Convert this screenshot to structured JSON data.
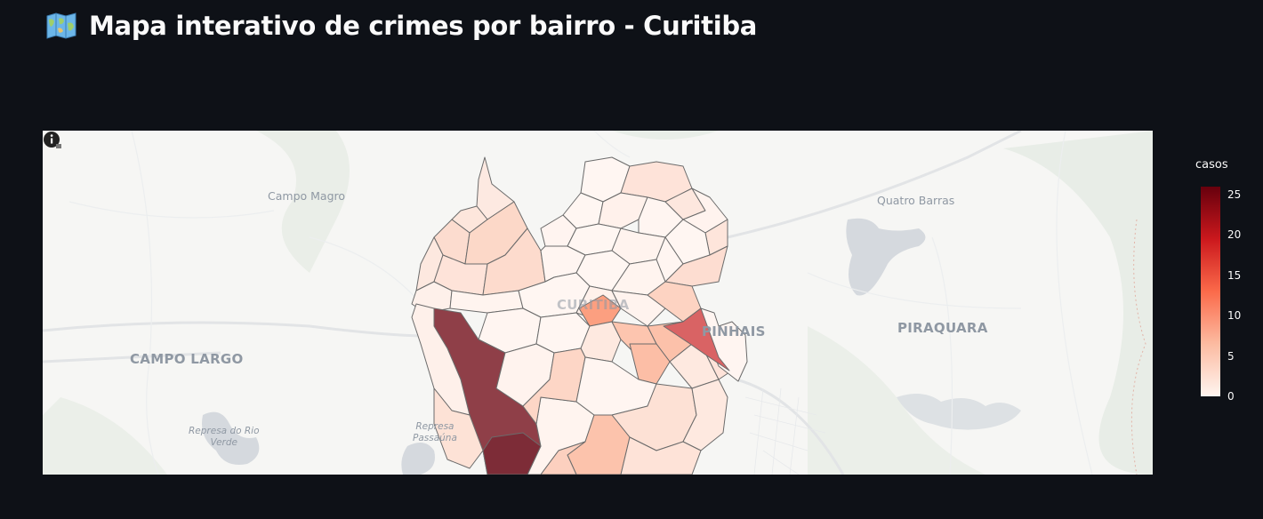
{
  "header": {
    "title": "Mapa interativo de crimes por bairro - Curitiba",
    "icon": "world-map-icon"
  },
  "map": {
    "labels": {
      "campo_magro": "Campo Magro",
      "quatro_barras": "Quatro Barras",
      "curitiba": "CURITIBA",
      "pinhais": "PINHAIS",
      "piraquara": "PIRAQUARA",
      "campo_largo": "CAMPO LARGO",
      "represa_rio_verde_1": "Represa do Rio",
      "represa_rio_verde_2": "Verde",
      "represa_passauna_1": "Represa",
      "represa_passauna_2": "Passaúna"
    },
    "info_icon": "info-icon"
  },
  "colorbar": {
    "title": "casos",
    "ticks": [
      "25",
      "20",
      "15",
      "10",
      "5",
      "0"
    ],
    "tick_values": [
      25,
      20,
      15,
      10,
      5,
      0
    ],
    "min": 0,
    "max": 26,
    "colors": [
      "#fff5f0",
      "#fcbba1",
      "#fb6a4a",
      "#cb181d",
      "#67000d"
    ]
  }
}
